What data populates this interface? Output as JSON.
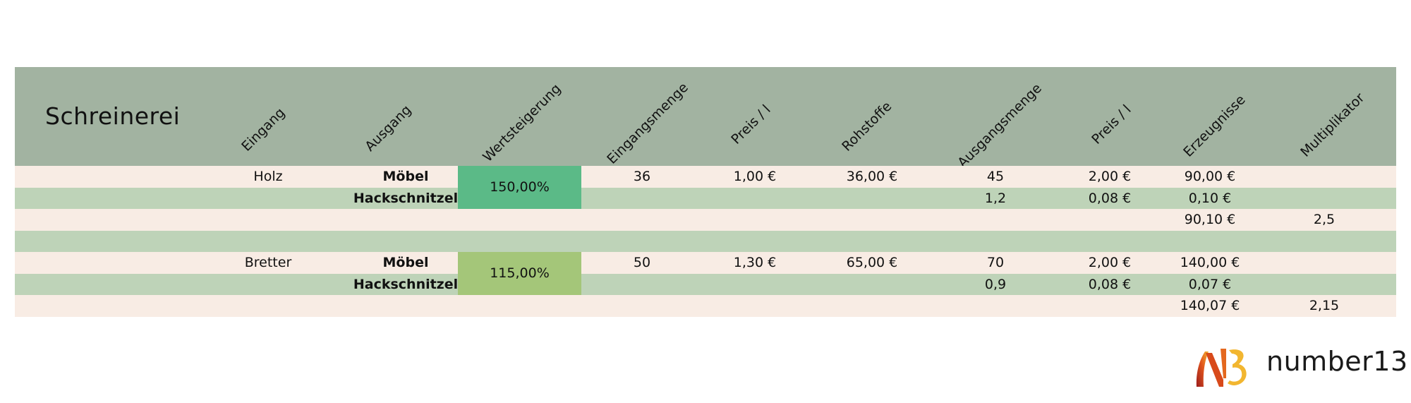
{
  "sheet": {
    "title": "Schreinerei",
    "headers": [
      "Eingang",
      "Ausgang",
      "Wertsteigerung",
      "Eingangsmenge",
      "Preis / l",
      "Rohstoffe",
      "Ausgangsmenge",
      "Preis / l",
      "Erzeugnisse",
      "Multiplikator"
    ],
    "rows": [
      {
        "style": "pink",
        "cells": {
          "eingang": "Holz",
          "ausgang": "Möbel",
          "eingangsmenge": "36",
          "preis_in": "1,00 €",
          "rohstoffe": "36,00 €",
          "ausgangsmenge": "45",
          "preis_out": "2,00 €",
          "erzeugnisse": "90,00 €",
          "multiplikator": ""
        }
      },
      {
        "style": "green",
        "cells": {
          "eingang": "",
          "ausgang": "Hackschnitzel",
          "eingangsmenge": "",
          "preis_in": "",
          "rohstoffe": "",
          "ausgangsmenge": "1,2",
          "preis_out": "0,08 €",
          "erzeugnisse": "0,10 €",
          "multiplikator": ""
        }
      },
      {
        "style": "pink",
        "cells": {
          "eingang": "",
          "ausgang": "",
          "eingangsmenge": "",
          "preis_in": "",
          "rohstoffe": "",
          "ausgangsmenge": "",
          "preis_out": "",
          "erzeugnisse": "90,10 €",
          "multiplikator": "2,5"
        }
      },
      {
        "style": "green",
        "cells": {
          "eingang": "",
          "ausgang": "",
          "eingangsmenge": "",
          "preis_in": "",
          "rohstoffe": "",
          "ausgangsmenge": "",
          "preis_out": "",
          "erzeugnisse": "",
          "multiplikator": ""
        }
      },
      {
        "style": "pink",
        "cells": {
          "eingang": "Bretter",
          "ausgang": "Möbel",
          "eingangsmenge": "50",
          "preis_in": "1,30 €",
          "rohstoffe": "65,00 €",
          "ausgangsmenge": "70",
          "preis_out": "2,00 €",
          "erzeugnisse": "140,00 €",
          "multiplikator": ""
        }
      },
      {
        "style": "green",
        "cells": {
          "eingang": "",
          "ausgang": "Hackschnitzel",
          "eingangsmenge": "",
          "preis_in": "",
          "rohstoffe": "",
          "ausgangsmenge": "0,9",
          "preis_out": "0,08 €",
          "erzeugnisse": "0,07 €",
          "multiplikator": ""
        }
      },
      {
        "style": "pink",
        "cells": {
          "eingang": "",
          "ausgang": "",
          "eingangsmenge": "",
          "preis_in": "",
          "rohstoffe": "",
          "ausgangsmenge": "",
          "preis_out": "",
          "erzeugnisse": "140,07 €",
          "multiplikator": "2,15"
        }
      }
    ],
    "badges": [
      {
        "value": "150,00%",
        "color": "#5bba87",
        "start_row": 0
      },
      {
        "value": "115,00%",
        "color": "#a4c679",
        "start_row": 4
      }
    ]
  },
  "logo": {
    "text": "number13",
    "mark": "N13"
  },
  "colors": {
    "header": "#a2b3a1",
    "row_pink": "#f8ece4",
    "row_green": "#bed3b8"
  }
}
